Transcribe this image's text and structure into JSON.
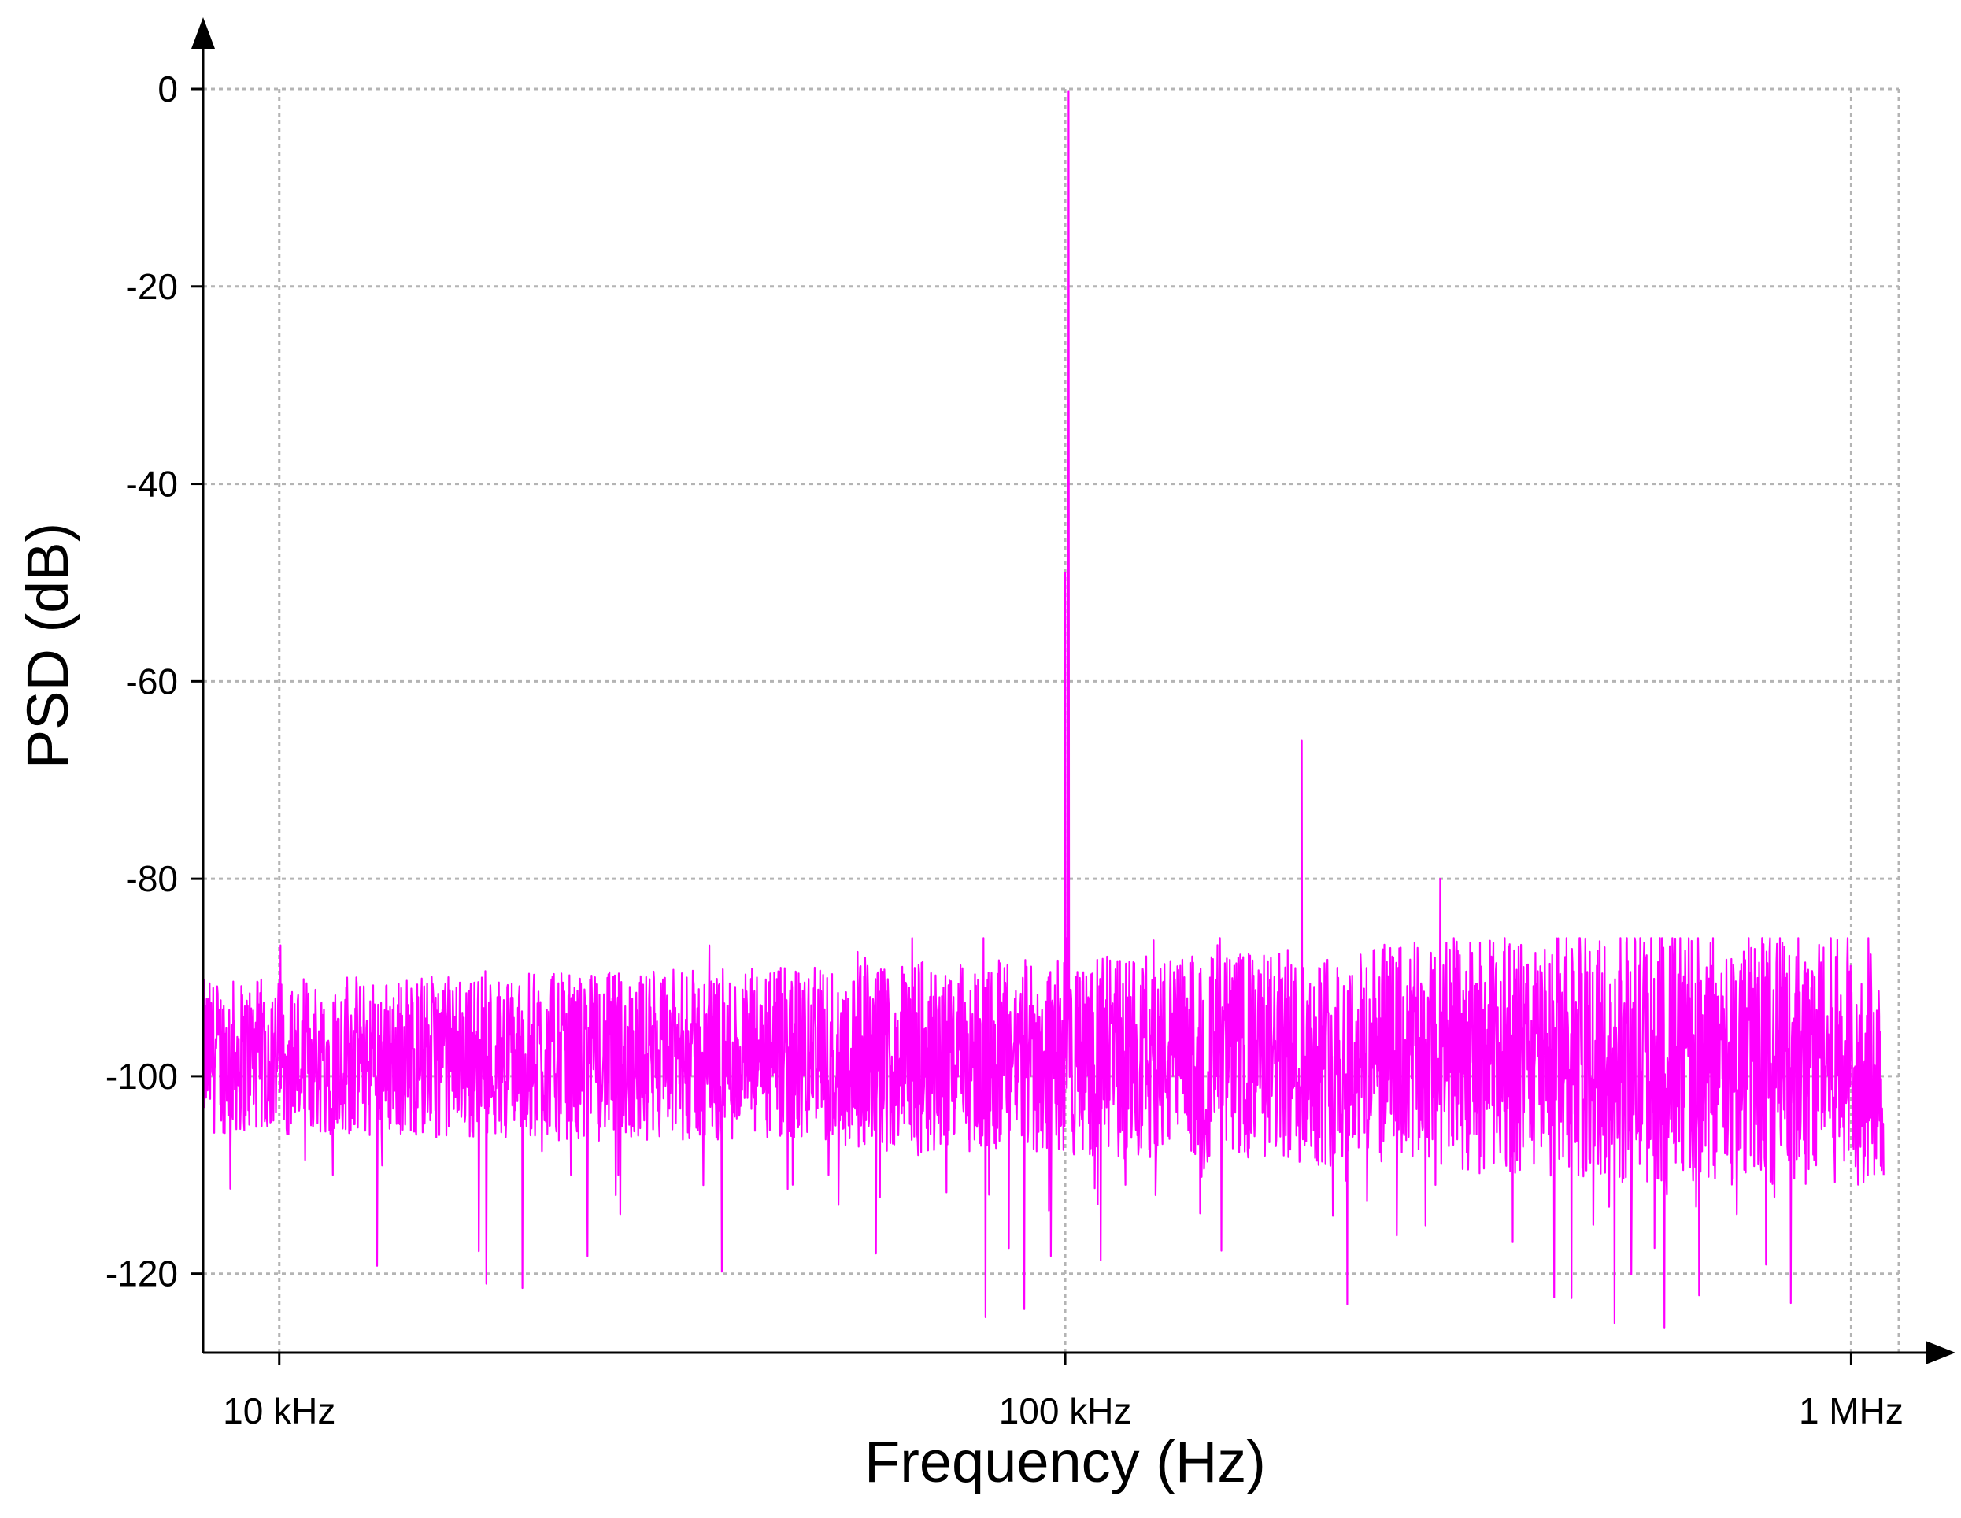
{
  "chart_data": {
    "type": "line",
    "xlabel": "Frequency (Hz)",
    "ylabel": "PSD (dB)",
    "xscale": "log",
    "xlim": [
      8000,
      1150000
    ],
    "ylim": [
      -128,
      0
    ],
    "xticks": [
      {
        "value": 10000,
        "label": "10 kHz"
      },
      {
        "value": 100000,
        "label": "100 kHz"
      },
      {
        "value": 1000000,
        "label": "1 MHz"
      }
    ],
    "yticks": [
      {
        "value": 0,
        "label": "0"
      },
      {
        "value": -20,
        "label": "-20"
      },
      {
        "value": -40,
        "label": "-40"
      },
      {
        "value": -60,
        "label": "-60"
      },
      {
        "value": -80,
        "label": "-80"
      },
      {
        "value": -100,
        "label": "-100"
      },
      {
        "value": -120,
        "label": "-120"
      }
    ],
    "grid": true,
    "color": "#ff00ff",
    "series": [
      {
        "noise_floor_db": -98,
        "noise_range_db": [
          -128,
          -86
        ],
        "x": [
          8000,
          8400,
          9000,
          9400,
          9800,
          10200,
          10600,
          11200,
          11700,
          12200,
          12700,
          13300,
          14000,
          14700,
          15400,
          16100,
          16800,
          17500,
          18100,
          18700,
          19500,
          20300,
          21000,
          22000,
          23500,
          25000,
          27000,
          29000,
          31000,
          33000,
          35000,
          37000,
          40000,
          45000,
          48000,
          50000,
          52000,
          55000,
          60000,
          65000,
          70000,
          75000,
          80000,
          90000,
          99000,
          100000,
          101000,
          102000,
          110000,
          120000,
          150000,
          190000,
          198000,
          200000,
          202000,
          250000,
          298000,
          300000,
          302000,
          400000,
          500000,
          600000,
          700000,
          800000,
          900000,
          1000000,
          1100000
        ],
        "y": [
          -97,
          -95,
          -94,
          -97.5,
          -92.5,
          -98,
          -103.5,
          -101.5,
          -110,
          -90,
          -95,
          -101.5,
          -101.5,
          -105.5,
          -97,
          -96,
          -91,
          -92,
          -90,
          -102,
          -91,
          -96,
          -101,
          -97,
          -110,
          -92,
          -110,
          -91,
          -101,
          -90,
          -100,
          -100,
          -93,
          -111,
          -89,
          -110,
          -100,
          -105,
          -99,
          -108,
          -91,
          -104,
          -112,
          -96,
          -99,
          -49,
          -0.2,
          -100,
          -113,
          -92,
          -99,
          -96,
          -105,
          -66,
          -98,
          -96,
          -99,
          -80,
          -97,
          -98,
          -125,
          -97,
          -99,
          -98,
          -100,
          -98,
          -110
        ]
      }
    ]
  }
}
